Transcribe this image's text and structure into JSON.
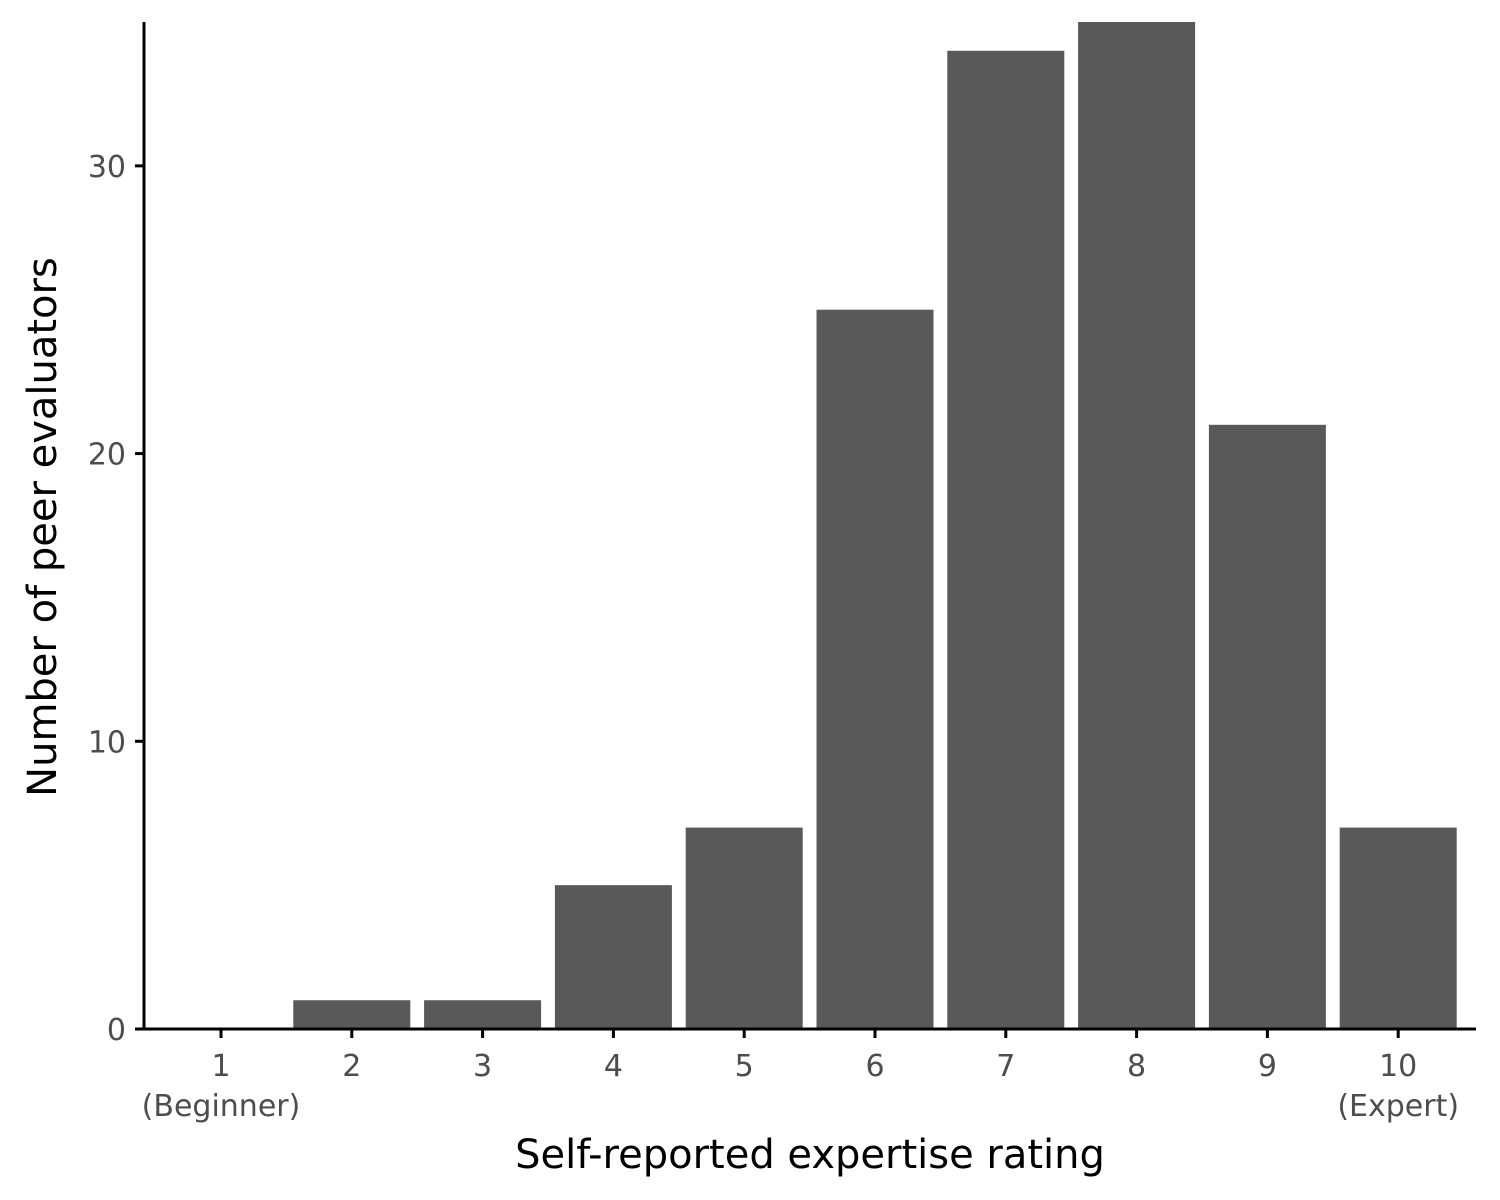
{
  "chart_data": {
    "type": "bar",
    "title": "",
    "xlabel": "Self-reported expertise rating",
    "ylabel": "Number of peer evaluators",
    "categories": [
      "1",
      "2",
      "3",
      "4",
      "5",
      "6",
      "7",
      "8",
      "9",
      "10"
    ],
    "category_sublabels": [
      "(Beginner)",
      "",
      "",
      "",
      "",
      "",
      "",
      "",
      "",
      "(Expert)"
    ],
    "values": [
      0,
      1,
      1,
      5,
      7,
      25,
      34,
      35,
      21,
      7
    ],
    "ylim": [
      0,
      35
    ],
    "yticks": [
      0,
      10,
      20,
      30
    ],
    "grid": false,
    "legend": "none",
    "bar_color": "#595959",
    "axis_color": "#000000"
  }
}
